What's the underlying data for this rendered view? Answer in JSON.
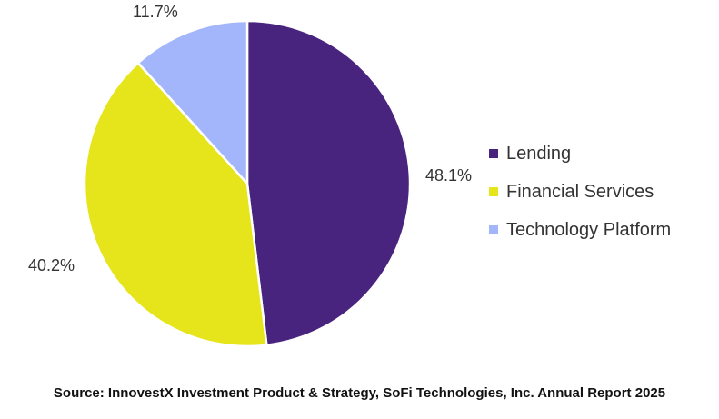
{
  "chart_data": {
    "type": "pie",
    "slices": [
      {
        "name": "Lending",
        "value": 48.1,
        "label": "48.1%",
        "color": "#48247f"
      },
      {
        "name": "Financial Services",
        "value": 40.2,
        "label": "40.2%",
        "color": "#e6e51c"
      },
      {
        "name": "Technology Platform",
        "value": 11.7,
        "label": "11.7%",
        "color": "#a3b6fb"
      }
    ],
    "start_angle_deg": 0,
    "direction": "clockwise",
    "legend_position": "right",
    "source": "Source: InnovestX Investment Product & Strategy, SoFi Technologies, Inc. Annual Report 2025"
  }
}
